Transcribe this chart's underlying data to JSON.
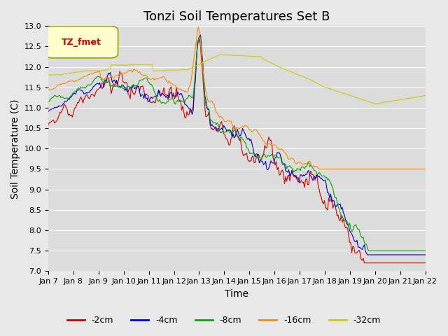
{
  "title": "Tonzi Soil Temperatures Set B",
  "xlabel": "Time",
  "ylabel": "Soil Temperature (C)",
  "ylim": [
    7.0,
    13.0
  ],
  "yticks": [
    7.0,
    7.5,
    8.0,
    8.5,
    9.0,
    9.5,
    10.0,
    10.5,
    11.0,
    11.5,
    12.0,
    12.5,
    13.0
  ],
  "xtick_labels": [
    "Jan 7",
    "Jan 8",
    "Jan 9",
    "Jan 10",
    "Jan 11",
    "Jan 12",
    "Jan 13",
    "Jan 14",
    "Jan 15",
    "Jan 16",
    "Jan 17",
    "Jan 18",
    "Jan 19",
    "Jan 20",
    "Jan 21",
    "Jan 22"
  ],
  "legend_label": "TZ_fmet",
  "series_labels": [
    "-2cm",
    "-4cm",
    "-8cm",
    "-16cm",
    "-32cm"
  ],
  "series_colors": [
    "#cc0000",
    "#0000cc",
    "#00aa00",
    "#ff8800",
    "#cccc00"
  ],
  "bg_color": "#e8e8e8",
  "plot_bg_color": "#dcdcdc",
  "title_fontsize": 13,
  "axis_fontsize": 10,
  "tick_fontsize": 8
}
